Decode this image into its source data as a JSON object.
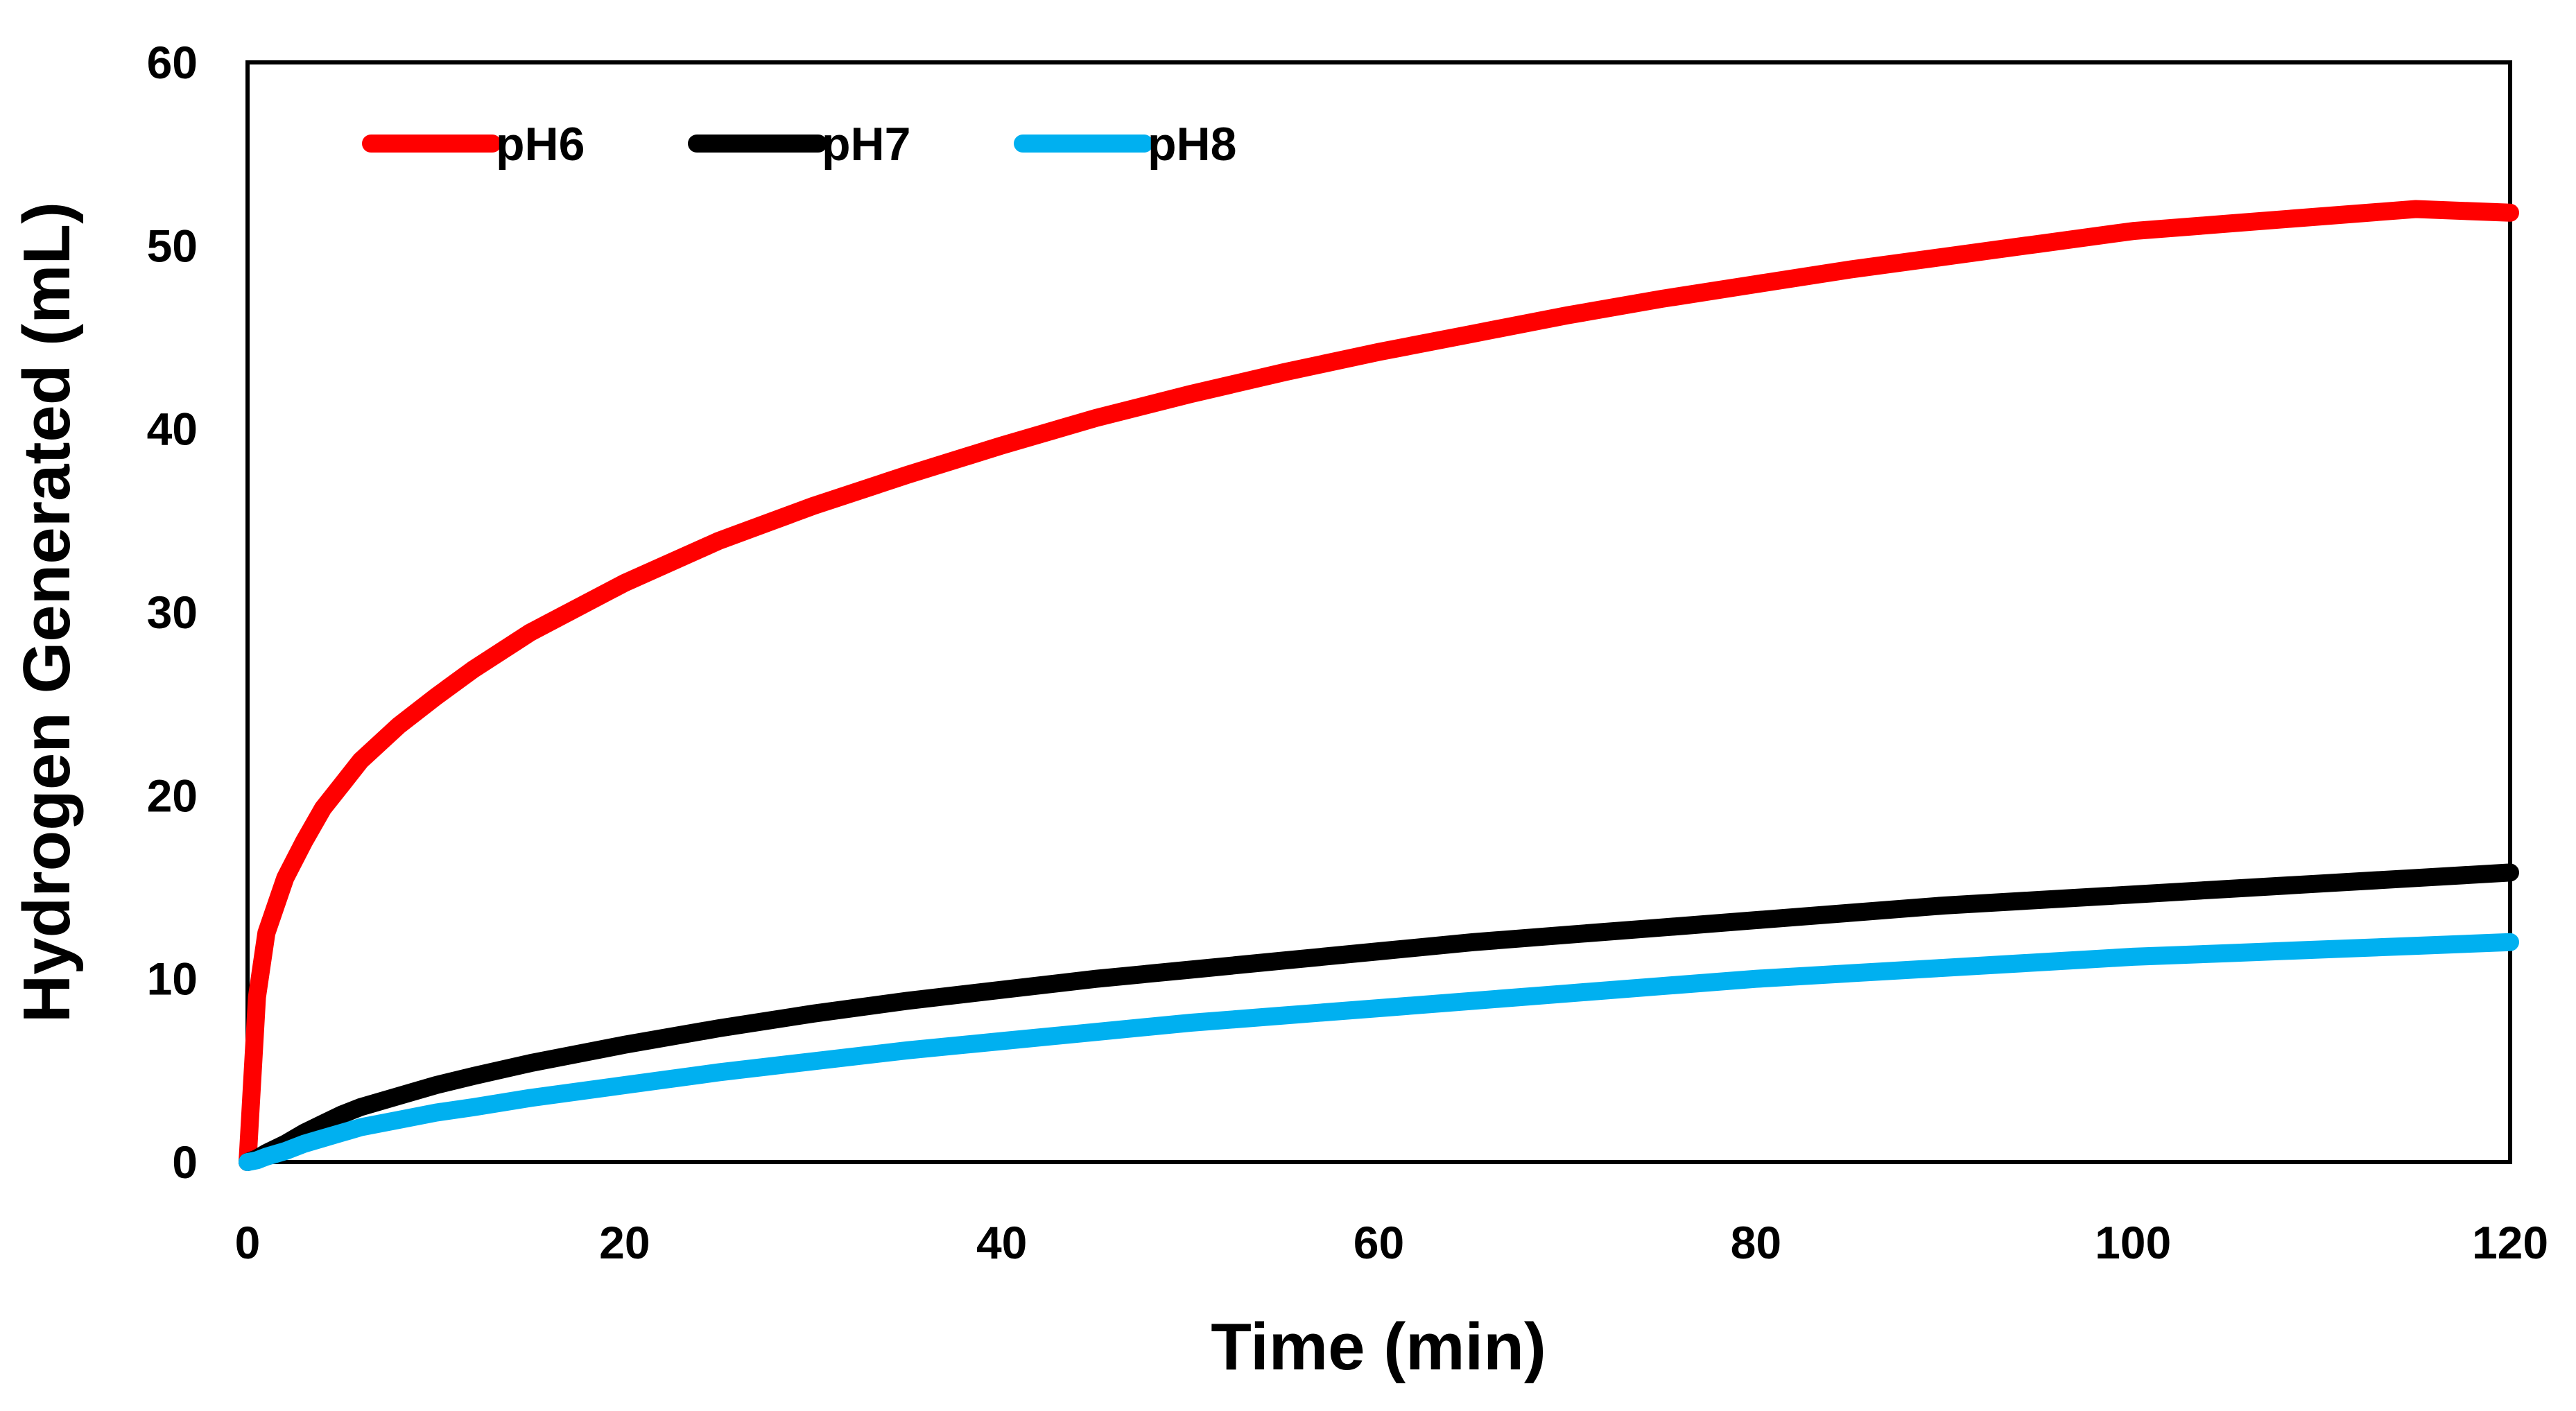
{
  "chart_data": {
    "type": "line",
    "title": "",
    "xlabel": "Time (min)",
    "ylabel": "Hydrogen Generated (mL)",
    "xlim": [
      0,
      120
    ],
    "ylim": [
      0,
      60
    ],
    "xticks": [
      0,
      20,
      40,
      60,
      80,
      100,
      120
    ],
    "yticks": [
      0,
      10,
      20,
      30,
      40,
      50,
      60
    ],
    "grid": false,
    "legend_position": "top-left",
    "x": [
      0,
      0.5,
      1,
      2,
      3,
      4,
      5,
      6,
      8,
      10,
      12,
      15,
      20,
      25,
      30,
      35,
      40,
      45,
      50,
      55,
      60,
      65,
      70,
      75,
      80,
      85,
      90,
      95,
      100,
      105,
      110,
      115,
      120
    ],
    "series": [
      {
        "name": "pH6",
        "color": "#ff0000",
        "values": [
          0,
          9.0,
          12.5,
          15.5,
          17.5,
          19.3,
          20.6,
          21.9,
          23.8,
          25.4,
          26.9,
          28.9,
          31.6,
          33.9,
          35.8,
          37.5,
          39.1,
          40.6,
          41.9,
          43.1,
          44.2,
          45.2,
          46.2,
          47.1,
          47.9,
          48.7,
          49.4,
          50.1,
          50.8,
          51.2,
          51.6,
          52.0,
          51.8
        ]
      },
      {
        "name": "pH7",
        "color": "#000000",
        "values": [
          0,
          0.2,
          0.5,
          1.0,
          1.6,
          2.1,
          2.6,
          3.0,
          3.6,
          4.2,
          4.7,
          5.4,
          6.4,
          7.3,
          8.1,
          8.8,
          9.4,
          10.0,
          10.5,
          11.0,
          11.5,
          12.0,
          12.4,
          12.8,
          13.2,
          13.6,
          14.0,
          14.3,
          14.6,
          14.9,
          15.2,
          15.5,
          15.8
        ]
      },
      {
        "name": "pH8",
        "color": "#00b0f0",
        "values": [
          0,
          0.1,
          0.3,
          0.6,
          1.0,
          1.3,
          1.6,
          1.9,
          2.3,
          2.7,
          3.0,
          3.5,
          4.2,
          4.9,
          5.5,
          6.1,
          6.6,
          7.1,
          7.6,
          8.0,
          8.4,
          8.8,
          9.2,
          9.6,
          10.0,
          10.3,
          10.6,
          10.9,
          11.2,
          11.4,
          11.6,
          11.8,
          12.0
        ]
      }
    ]
  }
}
